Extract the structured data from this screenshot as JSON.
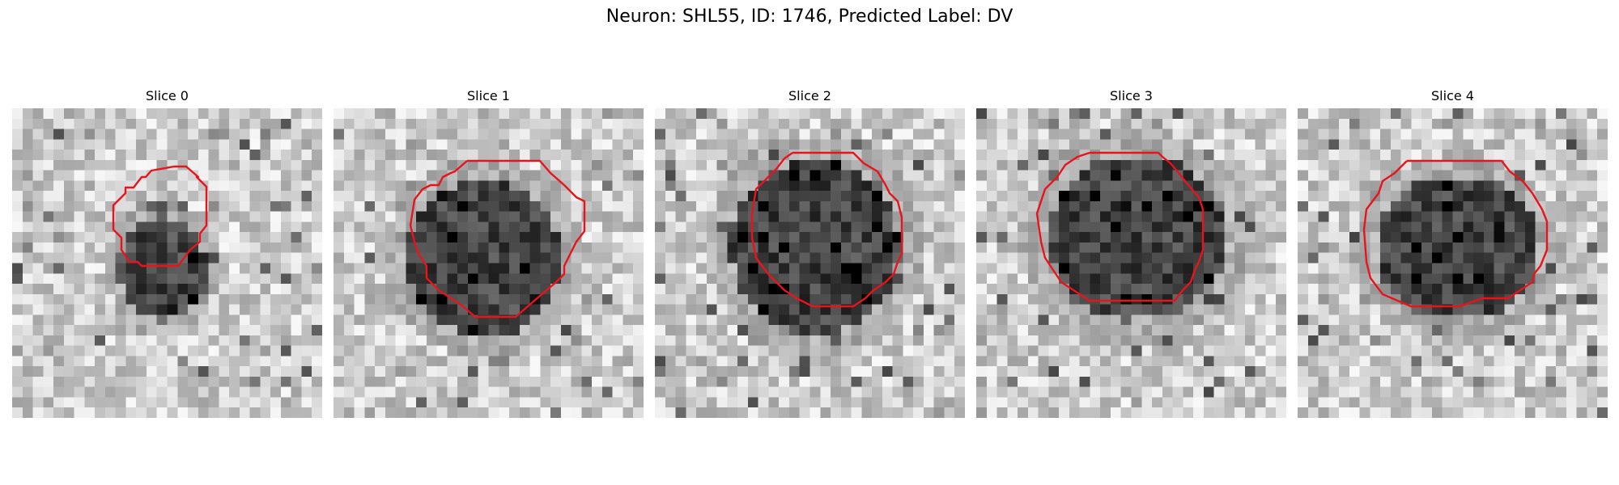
{
  "figure": {
    "title": "Neuron: SHL55, ID: 1746, Predicted Label: DV"
  },
  "panels": [
    {
      "title": "Slice 0"
    },
    {
      "title": "Slice 1"
    },
    {
      "title": "Slice 2"
    },
    {
      "title": "Slice 3"
    },
    {
      "title": "Slice 4"
    }
  ],
  "colors": {
    "contour": "#e8141c",
    "background": "#ffffff"
  }
}
